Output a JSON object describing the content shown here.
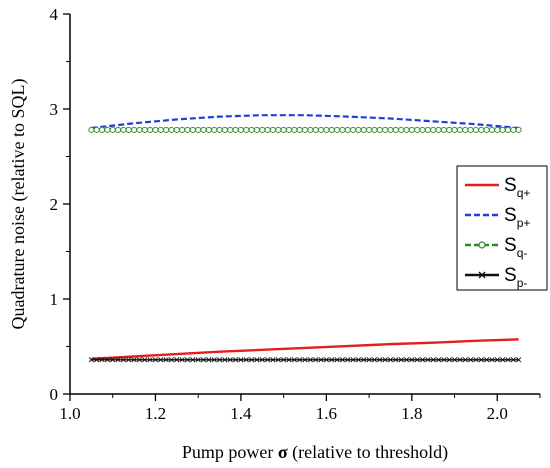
{
  "chart_data": {
    "type": "line",
    "title": "",
    "xlabel": "Pump power σ (relative to threshold)",
    "xlabel_parts": [
      "Pump power ",
      "σ",
      " (relative to threshold)"
    ],
    "ylabel": "Quadrature noise (relative to SQL)",
    "xlim": [
      1.0,
      2.1
    ],
    "ylim": [
      0,
      4
    ],
    "xticks": [
      "1.0",
      "1.2",
      "1.4",
      "1.6",
      "1.8",
      "2.0"
    ],
    "yticks": [
      "0",
      "1",
      "2",
      "3",
      "4"
    ],
    "grid": false,
    "legend_position": "right",
    "series": [
      {
        "name": "S_q+",
        "label_main": "S",
        "label_sub": "q+",
        "color": "#e02020",
        "style": "solid",
        "marker": "none",
        "x": [
          1.05,
          1.15,
          1.25,
          1.35,
          1.45,
          1.55,
          1.65,
          1.75,
          1.85,
          1.95,
          2.05
        ],
        "y": [
          0.37,
          0.395,
          0.42,
          0.445,
          0.465,
          0.485,
          0.505,
          0.525,
          0.54,
          0.56,
          0.575
        ]
      },
      {
        "name": "S_p+",
        "label_main": "S",
        "label_sub": "p+",
        "color": "#1f3fd8",
        "style": "dashed",
        "marker": "none",
        "x": [
          1.05,
          1.15,
          1.25,
          1.35,
          1.45,
          1.55,
          1.65,
          1.75,
          1.85,
          1.95,
          2.05
        ],
        "y": [
          2.8,
          2.85,
          2.89,
          2.92,
          2.935,
          2.935,
          2.92,
          2.9,
          2.87,
          2.84,
          2.8
        ]
      },
      {
        "name": "S_q-",
        "label_main": "S",
        "label_sub": "q-",
        "color": "#2a8a2a",
        "style": "dashed",
        "marker": "circle",
        "x": [
          1.05,
          2.05
        ],
        "y": [
          2.78,
          2.78
        ]
      },
      {
        "name": "S_p-",
        "label_main": "S",
        "label_sub": "p-",
        "color": "#111111",
        "style": "solid",
        "marker": "x",
        "x": [
          1.05,
          2.05
        ],
        "y": [
          0.36,
          0.36
        ]
      }
    ]
  }
}
